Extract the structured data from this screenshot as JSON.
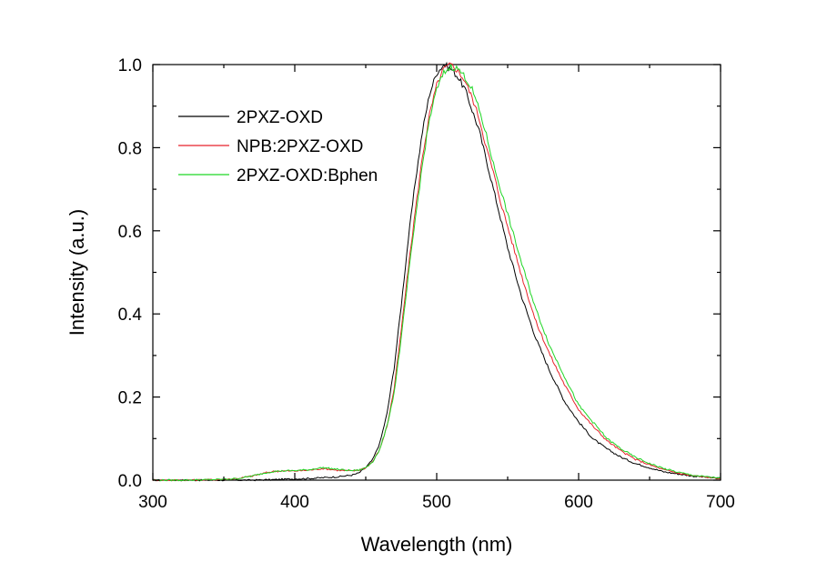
{
  "chart_data": {
    "type": "line",
    "xlabel": "Wavelength (nm)",
    "ylabel": "Intensity (a.u.)",
    "xlim": [
      300,
      700
    ],
    "ylim": [
      0,
      1.0
    ],
    "x_ticks": [
      "300",
      "400",
      "500",
      "600",
      "700"
    ],
    "y_ticks": [
      "0.0",
      "0.2",
      "0.4",
      "0.6",
      "0.8",
      "1.0"
    ],
    "grid": false,
    "legend_position": "top-left",
    "x": [
      300,
      320,
      340,
      350,
      360,
      370,
      380,
      385,
      390,
      400,
      410,
      415,
      420,
      430,
      440,
      445,
      450,
      455,
      460,
      465,
      470,
      475,
      480,
      485,
      490,
      495,
      500,
      505,
      510,
      515,
      520,
      525,
      530,
      535,
      540,
      545,
      550,
      555,
      560,
      570,
      580,
      590,
      600,
      610,
      620,
      630,
      640,
      650,
      660,
      670,
      680,
      690,
      700
    ],
    "series": [
      {
        "name": "2PXZ-OXD",
        "color": "#000000",
        "values": [
          0,
          0,
          0,
          0,
          0,
          0,
          0.001,
          0.001,
          0.002,
          0.003,
          0.004,
          0.005,
          0.006,
          0.008,
          0.012,
          0.017,
          0.03,
          0.05,
          0.09,
          0.16,
          0.27,
          0.42,
          0.58,
          0.72,
          0.84,
          0.93,
          0.98,
          1.0,
          0.99,
          0.97,
          0.94,
          0.89,
          0.84,
          0.77,
          0.7,
          0.63,
          0.56,
          0.5,
          0.44,
          0.34,
          0.26,
          0.19,
          0.14,
          0.1,
          0.075,
          0.055,
          0.04,
          0.03,
          0.02,
          0.015,
          0.01,
          0.007,
          0.004
        ]
      },
      {
        "name": "NPB:2PXZ-OXD",
        "color": "#e8222a",
        "values": [
          0,
          0,
          0.001,
          0.002,
          0.004,
          0.01,
          0.018,
          0.021,
          0.022,
          0.022,
          0.024,
          0.026,
          0.028,
          0.024,
          0.022,
          0.024,
          0.03,
          0.045,
          0.075,
          0.13,
          0.22,
          0.36,
          0.51,
          0.65,
          0.78,
          0.88,
          0.95,
          0.99,
          1.0,
          0.985,
          0.96,
          0.92,
          0.87,
          0.8,
          0.74,
          0.67,
          0.61,
          0.55,
          0.49,
          0.38,
          0.3,
          0.23,
          0.17,
          0.13,
          0.095,
          0.07,
          0.05,
          0.037,
          0.025,
          0.017,
          0.011,
          0.007,
          0.004
        ]
      },
      {
        "name": "2PXZ-OXD:Bphen",
        "color": "#1ed624",
        "values": [
          0,
          0,
          0.001,
          0.002,
          0.004,
          0.01,
          0.018,
          0.021,
          0.022,
          0.023,
          0.025,
          0.028,
          0.03,
          0.026,
          0.023,
          0.024,
          0.03,
          0.045,
          0.075,
          0.13,
          0.21,
          0.34,
          0.49,
          0.63,
          0.76,
          0.87,
          0.94,
          0.98,
          0.995,
          0.99,
          0.97,
          0.94,
          0.89,
          0.83,
          0.76,
          0.7,
          0.64,
          0.58,
          0.52,
          0.41,
          0.32,
          0.25,
          0.18,
          0.14,
          0.1,
          0.075,
          0.055,
          0.04,
          0.028,
          0.019,
          0.012,
          0.008,
          0.005
        ]
      }
    ]
  }
}
